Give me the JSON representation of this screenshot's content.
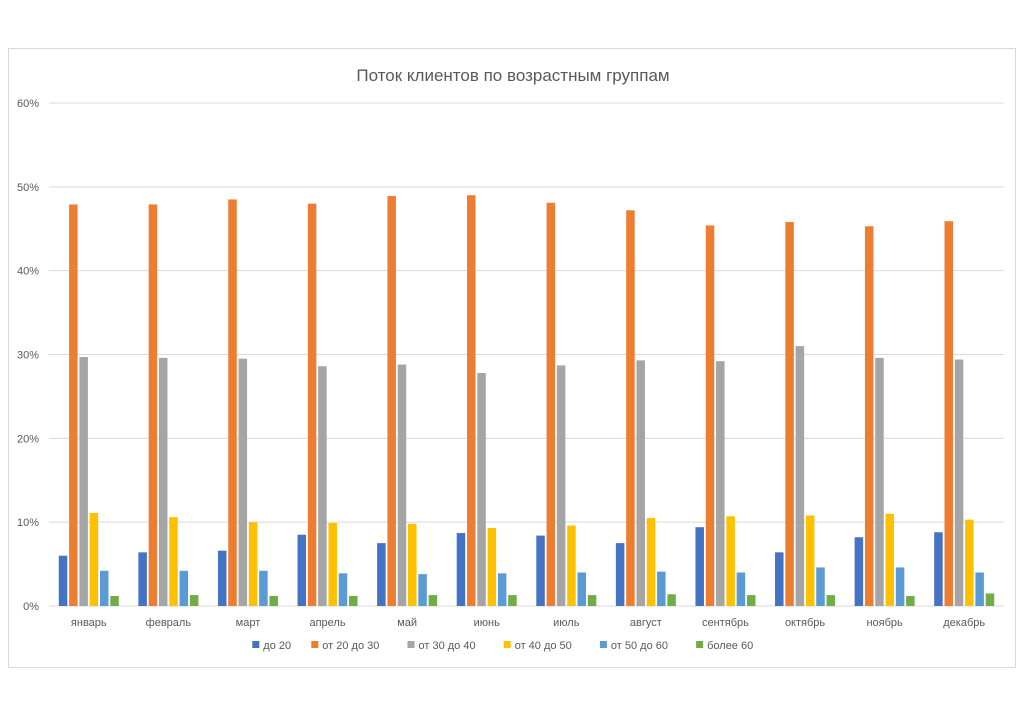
{
  "chart_data": {
    "type": "bar",
    "title": "Поток клиентов по возрастным группам",
    "xlabel": "",
    "ylabel": "",
    "ylim": [
      0,
      60
    ],
    "yticks": [
      "0%",
      "10%",
      "20%",
      "30%",
      "40%",
      "50%",
      "60%"
    ],
    "grid": true,
    "legend_position": "bottom",
    "categories": [
      "январь",
      "февраль",
      "март",
      "апрель",
      "май",
      "июнь",
      "июль",
      "август",
      "сентябрь",
      "октябрь",
      "ноябрь",
      "декабрь"
    ],
    "series": [
      {
        "name": "до 20",
        "color": "#4472c4",
        "values": [
          6.0,
          6.4,
          6.6,
          8.5,
          7.5,
          8.7,
          8.4,
          7.5,
          9.4,
          6.4,
          8.2,
          8.8
        ]
      },
      {
        "name": "от 20 до 30",
        "color": "#ed7d31",
        "values": [
          47.9,
          47.9,
          48.5,
          48.0,
          48.9,
          49.0,
          48.1,
          47.2,
          45.4,
          45.8,
          45.3,
          45.9
        ]
      },
      {
        "name": "от 30 до 40",
        "color": "#a5a5a5",
        "values": [
          29.7,
          29.6,
          29.5,
          28.6,
          28.8,
          27.8,
          28.7,
          29.3,
          29.2,
          31.0,
          29.6,
          29.4
        ]
      },
      {
        "name": "от 40 до 50",
        "color": "#ffc000",
        "values": [
          11.1,
          10.6,
          10.0,
          9.9,
          9.8,
          9.3,
          9.6,
          10.5,
          10.7,
          10.8,
          11.0,
          10.3
        ]
      },
      {
        "name": "от 50 до 60",
        "color": "#5b9bd5",
        "values": [
          4.2,
          4.2,
          4.2,
          3.9,
          3.8,
          3.9,
          4.0,
          4.1,
          4.0,
          4.6,
          4.6,
          4.0
        ]
      },
      {
        "name": "более 60",
        "color": "#70ad47",
        "values": [
          1.2,
          1.3,
          1.2,
          1.2,
          1.3,
          1.3,
          1.3,
          1.4,
          1.3,
          1.3,
          1.2,
          1.5
        ]
      }
    ]
  }
}
